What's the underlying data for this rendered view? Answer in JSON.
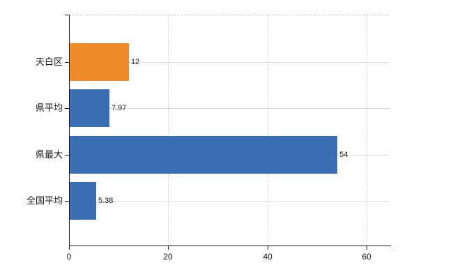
{
  "chart_data": {
    "type": "bar",
    "orientation": "horizontal",
    "title": "",
    "xlabel": "",
    "ylabel": "",
    "categories": [
      "天白区",
      "県平均",
      "県最大",
      "全国平均"
    ],
    "values": [
      12,
      7.97,
      54,
      5.38
    ],
    "value_labels": [
      "12",
      "7.97",
      "54",
      "5.38"
    ],
    "bar_colors": [
      "#ee8c2b",
      "#3a6eb0",
      "#3a6eb0",
      "#3a6eb0"
    ],
    "highlight_color": "#ee8c2b",
    "default_bar_color": "#3a6eb0",
    "x_ticks": [
      "0",
      "20",
      "40",
      "60"
    ],
    "x_tick_values": [
      0,
      20,
      40,
      60
    ],
    "xlim": [
      0,
      65
    ],
    "grid": true,
    "gridline_color": "#d7dbd7",
    "axis_color": "#161616",
    "background_color": "#ffffff",
    "legend": null
  }
}
